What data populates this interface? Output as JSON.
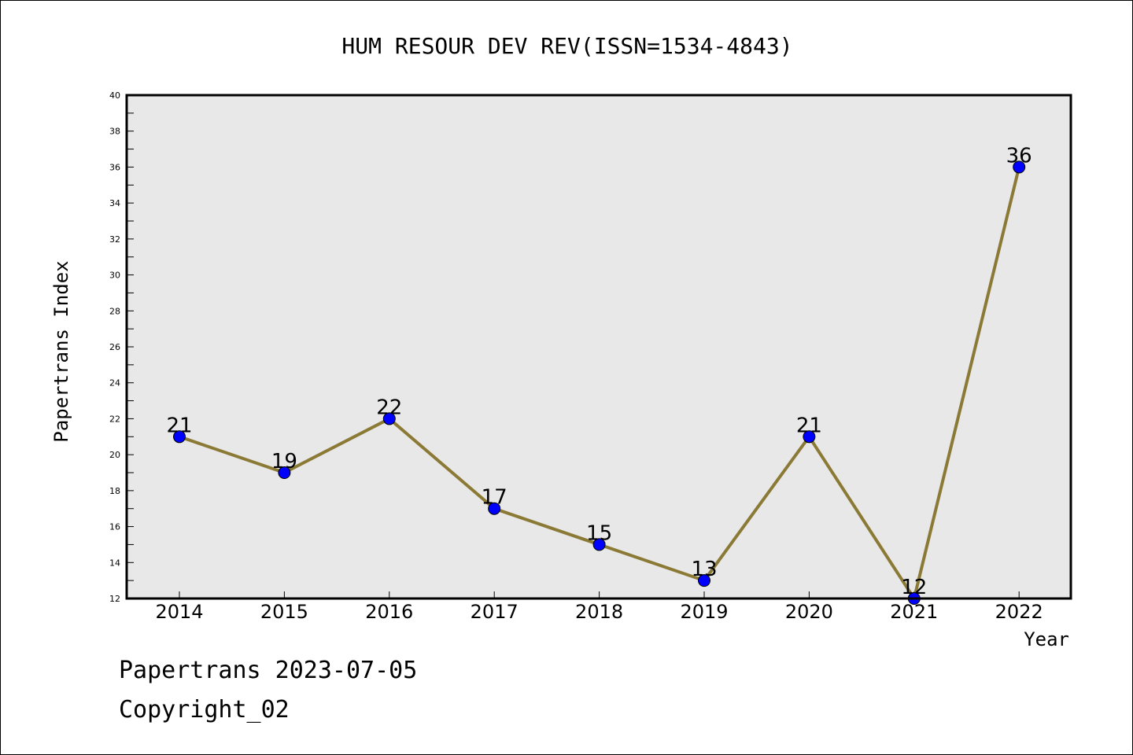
{
  "chart_data": {
    "type": "line",
    "title": "HUM RESOUR DEV REV(ISSN=1534-4843)",
    "xlabel": "Year",
    "ylabel": "Papertrans Index",
    "x": [
      "2014",
      "2015",
      "2016",
      "2017",
      "2018",
      "2019",
      "2020",
      "2021",
      "2022"
    ],
    "series": [
      {
        "values": [
          21,
          19,
          22,
          17,
          15,
          13,
          21,
          12,
          36
        ]
      }
    ],
    "data_labels": [
      "21",
      "19",
      "22",
      "17",
      "15",
      "13",
      "21",
      "12",
      "36"
    ],
    "ylim": [
      12,
      40
    ],
    "yticks": [
      12,
      14,
      16,
      18,
      20,
      22,
      24,
      26,
      28,
      30,
      32,
      34,
      36,
      38,
      40
    ],
    "grid": false,
    "colors": {
      "plot_background": "#e8e8e8",
      "line": "#8b7a35",
      "marker": "#0000ff"
    }
  },
  "footer": {
    "date_text": "Papertrans 2023-07-05",
    "copyright_text": "Copyright_02"
  }
}
